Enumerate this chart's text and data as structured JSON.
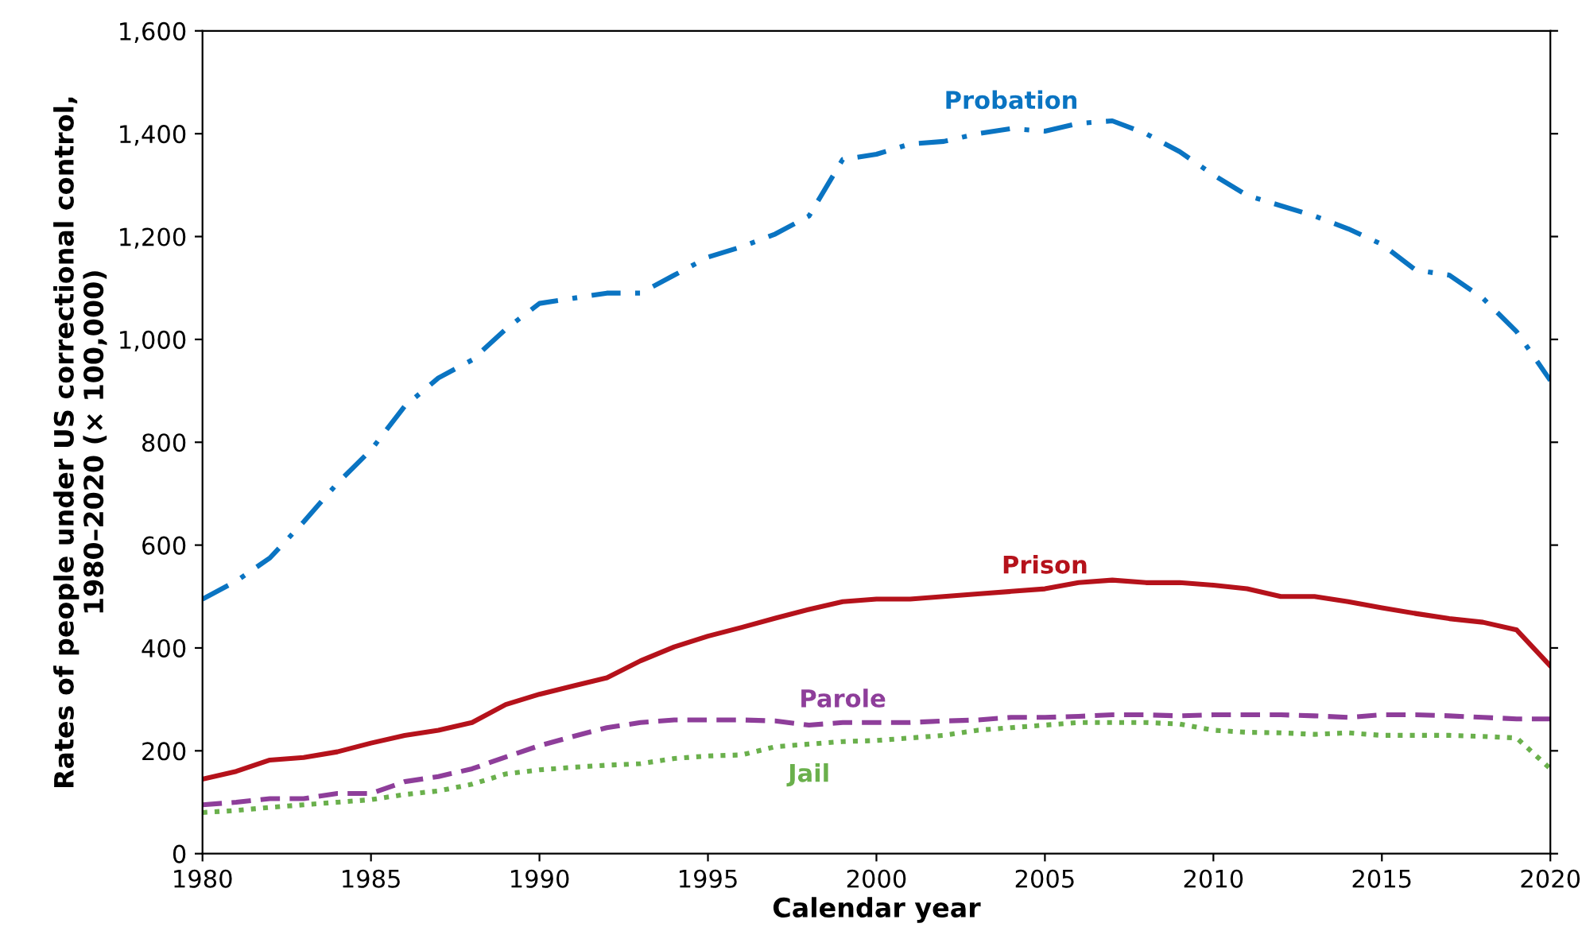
{
  "chart_data": {
    "type": "line",
    "xlabel": "Calendar year",
    "ylabel": "Rates of people under US correctional control,\n1980–2020 (× 100,000)",
    "x": [
      1980,
      1981,
      1982,
      1983,
      1984,
      1985,
      1986,
      1987,
      1988,
      1989,
      1990,
      1991,
      1992,
      1993,
      1994,
      1995,
      1996,
      1997,
      1998,
      1999,
      2000,
      2001,
      2002,
      2003,
      2004,
      2005,
      2006,
      2007,
      2008,
      2009,
      2010,
      2011,
      2012,
      2013,
      2014,
      2015,
      2016,
      2017,
      2018,
      2019,
      2020
    ],
    "series": [
      {
        "name": "Probation",
        "color": "#0a74c2",
        "line_style": "dashdot",
        "values": [
          495,
          530,
          575,
          645,
          720,
          785,
          870,
          925,
          960,
          1020,
          1070,
          1080,
          1090,
          1090,
          1125,
          1160,
          1180,
          1205,
          1240,
          1350,
          1360,
          1380,
          1385,
          1400,
          1410,
          1405,
          1420,
          1425,
          1400,
          1365,
          1320,
          1280,
          1260,
          1240,
          1215,
          1185,
          1135,
          1125,
          1080,
          1015,
          920
        ]
      },
      {
        "name": "Prison",
        "color": "#b5121b",
        "line_style": "solid",
        "values": [
          145,
          160,
          182,
          187,
          198,
          215,
          230,
          240,
          255,
          290,
          310,
          326,
          342,
          375,
          402,
          423,
          440,
          458,
          475,
          490,
          495,
          495,
          500,
          505,
          510,
          515,
          527,
          532,
          527,
          527,
          522,
          515,
          500,
          500,
          490,
          478,
          467,
          457,
          450,
          435,
          365
        ]
      },
      {
        "name": "Parole",
        "color": "#8e3e9a",
        "line_style": "dashed",
        "values": [
          95,
          100,
          107,
          107,
          117,
          117,
          140,
          150,
          165,
          188,
          210,
          228,
          245,
          255,
          260,
          260,
          260,
          258,
          250,
          255,
          255,
          255,
          258,
          260,
          265,
          265,
          267,
          270,
          270,
          268,
          270,
          270,
          270,
          268,
          265,
          270,
          270,
          268,
          265,
          262,
          262
        ]
      },
      {
        "name": "Jail",
        "color": "#6ab04c",
        "line_style": "dotted",
        "values": [
          80,
          84,
          90,
          95,
          100,
          105,
          115,
          122,
          135,
          155,
          163,
          168,
          172,
          175,
          185,
          190,
          192,
          208,
          213,
          218,
          220,
          225,
          230,
          240,
          245,
          250,
          255,
          255,
          255,
          252,
          240,
          236,
          235,
          232,
          235,
          230,
          230,
          230,
          228,
          225,
          165
        ]
      }
    ],
    "xlim": [
      1980,
      2020
    ],
    "xticks": [
      1980,
      1985,
      1990,
      1995,
      2000,
      2005,
      2010,
      2015,
      2020
    ],
    "ylim": [
      0,
      1600
    ],
    "yticks": [
      0,
      {
        "value": 200,
        "label": "200"
      },
      {
        "value": 400,
        "label": "400"
      },
      {
        "value": 600,
        "label": "600"
      },
      {
        "value": 800,
        "label": "800"
      },
      {
        "value": 1000,
        "label": "1,000"
      },
      {
        "value": 1200,
        "label": "1,200"
      },
      {
        "value": 1400,
        "label": "1,400"
      },
      {
        "value": 1600,
        "label": "1,600"
      }
    ],
    "grid": false,
    "legend": false
  }
}
